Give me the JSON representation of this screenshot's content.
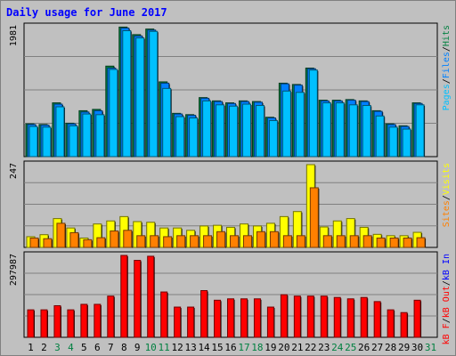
{
  "title": "Daily usage for June 2017",
  "colors": {
    "background": "#c0c0c0",
    "hits": "#008040",
    "files": "#0080ff",
    "pages": "#00c0ff",
    "visits": "#ffff00",
    "sites": "#ff8000",
    "kbin": "#0000ff",
    "kbout": "#ff0000",
    "weekend_day": "#008040",
    "weekday_day": "#000000"
  },
  "chart_data": [
    {
      "type": "bar",
      "panel": "hits-files-pages",
      "ymax_label": "1981",
      "ylim": [
        0,
        1981
      ],
      "categories": [
        "1",
        "2",
        "3",
        "4",
        "5",
        "6",
        "7",
        "8",
        "9",
        "10",
        "11",
        "12",
        "13",
        "14",
        "15",
        "16",
        "17",
        "18",
        "19",
        "20",
        "21",
        "22",
        "23",
        "24",
        "25",
        "26",
        "27",
        "28",
        "29",
        "30",
        "31"
      ],
      "weekend_days": [
        "3",
        "4",
        "10",
        "11",
        "17",
        "18",
        "24",
        "25",
        "31"
      ],
      "legend": [
        {
          "label": "Hits",
          "color": "#008040"
        },
        {
          "label": "Files",
          "color": "#0080ff"
        },
        {
          "label": "Pages",
          "color": "#00c0ff"
        }
      ],
      "series": [
        {
          "name": "Hits",
          "values": [
            500,
            490,
            820,
            510,
            700,
            720,
            1380,
            1975,
            1860,
            1945,
            1140,
            660,
            640,
            900,
            850,
            820,
            850,
            840,
            600,
            1120,
            1100,
            1350,
            860,
            860,
            870,
            850,
            700,
            500,
            470,
            820,
            0
          ]
        },
        {
          "name": "Files",
          "values": [
            490,
            480,
            800,
            500,
            680,
            700,
            1350,
            1960,
            1840,
            1930,
            1120,
            650,
            630,
            890,
            840,
            810,
            840,
            830,
            590,
            1110,
            1090,
            1340,
            850,
            850,
            860,
            840,
            690,
            490,
            460,
            810,
            0
          ]
        },
        {
          "name": "Pages",
          "values": [
            460,
            450,
            760,
            470,
            650,
            640,
            1330,
            1920,
            1810,
            1910,
            1040,
            610,
            590,
            850,
            790,
            770,
            800,
            780,
            550,
            1000,
            980,
            1320,
            820,
            820,
            790,
            780,
            620,
            450,
            420,
            790,
            0
          ]
        }
      ]
    },
    {
      "type": "bar",
      "panel": "visits-sites",
      "ymax_label": "247",
      "ylim": [
        0,
        247
      ],
      "categories": [
        "1",
        "2",
        "3",
        "4",
        "5",
        "6",
        "7",
        "8",
        "9",
        "10",
        "11",
        "12",
        "13",
        "14",
        "15",
        "16",
        "17",
        "18",
        "19",
        "20",
        "21",
        "22",
        "23",
        "24",
        "25",
        "26",
        "27",
        "28",
        "29",
        "30",
        "31"
      ],
      "legend": [
        {
          "label": "Visits",
          "color": "#ffff00"
        },
        {
          "label": "Sites",
          "color": "#ff8000"
        }
      ],
      "series": [
        {
          "name": "Visits",
          "values": [
            32,
            38,
            86,
            58,
            28,
            70,
            79,
            92,
            77,
            75,
            58,
            58,
            51,
            64,
            66,
            60,
            70,
            64,
            72,
            92,
            107,
            247,
            61,
            79,
            86,
            60,
            39,
            35,
            35,
            45,
            0
          ]
        },
        {
          "name": "Sites",
          "values": [
            28,
            26,
            72,
            44,
            23,
            29,
            49,
            51,
            35,
            35,
            32,
            35,
            35,
            35,
            47,
            35,
            35,
            47,
            47,
            35,
            35,
            178,
            35,
            35,
            35,
            35,
            28,
            28,
            28,
            29,
            0
          ]
        }
      ]
    },
    {
      "type": "bar",
      "panel": "kbin-kbout",
      "ymax_label": "297987",
      "ylim": [
        0,
        297987
      ],
      "categories": [
        "1",
        "2",
        "3",
        "4",
        "5",
        "6",
        "7",
        "8",
        "9",
        "10",
        "11",
        "12",
        "13",
        "14",
        "15",
        "16",
        "17",
        "18",
        "19",
        "20",
        "21",
        "22",
        "23",
        "24",
        "25",
        "26",
        "27",
        "28",
        "29",
        "30",
        "31"
      ],
      "legend": [
        {
          "label": "kB In",
          "color": "#0000ff"
        },
        {
          "label": "kB Out",
          "color": "#ff0000"
        },
        {
          "label": "kB F",
          "color": "#ff0000"
        }
      ],
      "series": [
        {
          "name": "kB F",
          "values": [
            100000,
            100000,
            115000,
            100000,
            120000,
            120000,
            150000,
            297987,
            280000,
            295000,
            165000,
            110000,
            110000,
            170000,
            135000,
            140000,
            140000,
            140000,
            110000,
            155000,
            150000,
            150000,
            150000,
            145000,
            140000,
            145000,
            130000,
            100000,
            90000,
            135000,
            0
          ]
        }
      ]
    }
  ]
}
